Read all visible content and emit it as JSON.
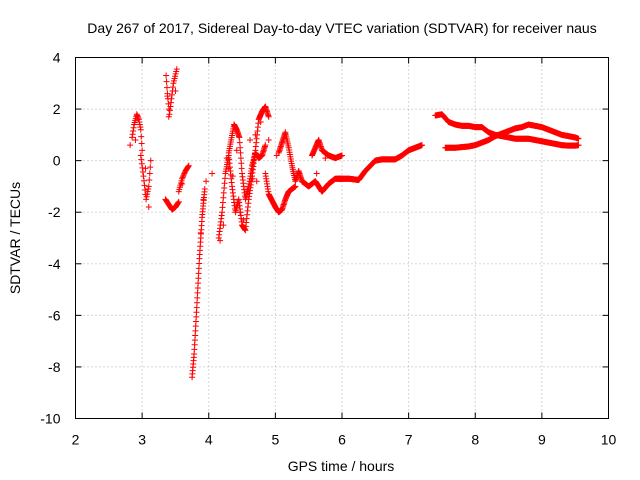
{
  "chart_data": {
    "type": "scatter",
    "title": "Day 267 of 2017, Sidereal Day-to-day VTEC variation (SDTVAR) for receiver naus",
    "xlabel": "GPS time / hours",
    "ylabel": "SDTVAR / TECUs",
    "xlim": [
      2,
      10
    ],
    "ylim": [
      -10,
      4
    ],
    "xticks": [
      2,
      3,
      4,
      5,
      6,
      7,
      8,
      9,
      10
    ],
    "yticks": [
      -10,
      -8,
      -6,
      -4,
      -2,
      0,
      2,
      4
    ],
    "xtick_labels": [
      "2",
      "3",
      "4",
      "5",
      "6",
      "7",
      "8",
      "9",
      "10"
    ],
    "ytick_labels": [
      "-10",
      "-8",
      "-6",
      "-4",
      "-2",
      "0",
      "2",
      "4"
    ],
    "grid": true,
    "marker": "+",
    "color": "#ff0000",
    "segments": [
      {
        "name": "arc-a",
        "x": [
          2.85,
          2.88,
          2.92,
          2.95,
          2.98,
          3.0
        ],
        "y": [
          0.9,
          1.4,
          1.8,
          1.6,
          1.2,
          0.4
        ],
        "step": 0.008
      },
      {
        "name": "arc-b",
        "x": [
          2.98,
          3.02,
          3.06,
          3.1,
          3.13
        ],
        "y": [
          0.2,
          -0.6,
          -1.5,
          -1.0,
          0.0
        ],
        "step": 0.008
      },
      {
        "name": "arc-c",
        "x": [
          3.35,
          3.4,
          3.45,
          3.5,
          3.55
        ],
        "y": [
          -1.5,
          -1.7,
          -1.9,
          -1.8,
          -1.6
        ],
        "step": 0.008
      },
      {
        "name": "arc-d",
        "x": [
          3.36,
          3.38,
          3.41,
          3.44,
          3.47,
          3.52
        ],
        "y": [
          3.3,
          2.6,
          1.8,
          2.4,
          3.0,
          3.55
        ],
        "step": 0.008
      },
      {
        "name": "arc-e",
        "x": [
          3.55,
          3.6,
          3.65,
          3.7
        ],
        "y": [
          -1.2,
          -0.7,
          -0.4,
          -0.2
        ],
        "step": 0.008
      },
      {
        "name": "arc-f",
        "x": [
          3.75,
          3.78,
          3.82,
          3.86,
          3.9,
          3.94
        ],
        "y": [
          -8.4,
          -7.5,
          -5.7,
          -3.8,
          -2.2,
          -1.1
        ],
        "step": 0.004
      },
      {
        "name": "arc-g",
        "x": [
          4.15,
          4.2,
          4.25,
          4.3,
          4.35,
          4.4,
          4.45,
          4.5,
          4.55,
          4.6,
          4.65,
          4.7,
          4.75,
          4.8,
          4.85,
          4.9
        ],
        "y": [
          -3.0,
          -2.0,
          -0.5,
          0.2,
          -1.0,
          -2.0,
          -1.5,
          -2.5,
          -2.7,
          -1.5,
          -0.6,
          0.4,
          1.6,
          1.9,
          2.1,
          1.7
        ],
        "step": 0.006
      },
      {
        "name": "arc-h",
        "x": [
          4.3,
          4.38,
          4.42,
          4.46,
          4.5,
          4.55,
          4.6,
          4.65,
          4.7,
          4.75,
          4.8,
          4.85
        ],
        "y": [
          0.3,
          1.4,
          1.2,
          0.9,
          -0.5,
          -1.5,
          -1.0,
          -0.2,
          0.3,
          0.1,
          0.2,
          0.6
        ],
        "step": 0.006
      },
      {
        "name": "arc-i",
        "x": [
          4.85,
          4.9,
          5.0,
          5.05,
          5.1,
          5.15,
          5.2,
          5.3
        ],
        "y": [
          -0.5,
          -1.3,
          -1.8,
          -2.0,
          -1.9,
          -1.5,
          -1.2,
          -1.0
        ],
        "step": 0.006
      },
      {
        "name": "arc-j",
        "x": [
          5.05,
          5.1,
          5.15,
          5.2,
          5.25,
          5.3,
          5.35,
          5.4,
          5.5,
          5.6,
          5.7,
          5.8,
          5.9,
          6.0
        ],
        "y": [
          0.3,
          0.7,
          1.1,
          0.5,
          -0.2,
          -0.8,
          -0.4,
          -0.8,
          -1.0,
          -0.8,
          -1.2,
          -0.9,
          -0.7,
          -0.7
        ],
        "step": 0.006
      },
      {
        "name": "arc-k",
        "x": [
          5.55,
          5.6,
          5.65,
          5.7,
          5.8,
          5.9,
          6.0
        ],
        "y": [
          0.2,
          0.5,
          0.8,
          0.4,
          0.2,
          0.1,
          0.2
        ],
        "step": 0.006
      },
      {
        "name": "arc-l",
        "x": [
          5.95,
          6.1,
          6.25,
          6.35,
          6.5,
          6.6,
          6.8,
          6.9,
          7.0,
          7.1,
          7.2
        ],
        "y": [
          -0.7,
          -0.7,
          -0.75,
          -0.4,
          0.0,
          0.05,
          0.05,
          0.2,
          0.4,
          0.5,
          0.6
        ],
        "step": 0.006
      },
      {
        "name": "arc-m",
        "x": [
          7.4,
          7.5,
          7.6,
          7.7,
          7.8,
          7.9,
          8.0,
          8.1,
          8.2,
          8.3,
          8.4,
          8.5,
          8.6,
          8.7,
          8.8,
          8.9,
          9.0,
          9.1,
          9.2,
          9.3,
          9.4,
          9.5,
          9.55
        ],
        "y": [
          1.75,
          1.8,
          1.5,
          1.4,
          1.35,
          1.35,
          1.3,
          1.3,
          1.1,
          1.0,
          0.95,
          0.9,
          0.85,
          0.85,
          0.85,
          0.8,
          0.75,
          0.7,
          0.65,
          0.6,
          0.58,
          0.58,
          0.6
        ],
        "step": 0.008
      },
      {
        "name": "arc-n",
        "x": [
          7.55,
          7.7,
          7.9,
          8.0,
          8.1,
          8.2,
          8.3,
          8.4,
          8.5,
          8.6,
          8.7,
          8.8,
          8.9,
          9.0,
          9.1,
          9.2,
          9.3,
          9.4,
          9.5,
          9.55
        ],
        "y": [
          0.5,
          0.5,
          0.55,
          0.6,
          0.7,
          0.8,
          0.95,
          1.05,
          1.15,
          1.25,
          1.3,
          1.4,
          1.35,
          1.3,
          1.2,
          1.1,
          1.0,
          0.95,
          0.9,
          0.85
        ],
        "step": 0.008
      }
    ],
    "scatter": [
      {
        "x": 2.82,
        "y": 0.6
      },
      {
        "x": 2.9,
        "y": 0.8
      },
      {
        "x": 3.1,
        "y": -1.8
      },
      {
        "x": 3.38,
        "y": 2.5
      },
      {
        "x": 3.4,
        "y": 1.7
      },
      {
        "x": 3.5,
        "y": 2.7
      },
      {
        "x": 3.92,
        "y": -1.5
      },
      {
        "x": 3.96,
        "y": -0.8
      },
      {
        "x": 4.17,
        "y": -3.1
      },
      {
        "x": 4.22,
        "y": -2.5
      },
      {
        "x": 4.3,
        "y": -0.3
      },
      {
        "x": 4.42,
        "y": 0.4
      },
      {
        "x": 4.47,
        "y": -2.0
      },
      {
        "x": 4.52,
        "y": -2.3
      },
      {
        "x": 4.58,
        "y": -1.2
      },
      {
        "x": 4.62,
        "y": 0.8
      },
      {
        "x": 4.66,
        "y": -0.7
      },
      {
        "x": 4.7,
        "y": 1.0
      },
      {
        "x": 4.72,
        "y": -0.8
      },
      {
        "x": 4.78,
        "y": 1.5
      },
      {
        "x": 4.9,
        "y": 0.8
      },
      {
        "x": 5.02,
        "y": 0.2
      },
      {
        "x": 5.62,
        "y": -0.5
      },
      {
        "x": 5.75,
        "y": 0.1
      },
      {
        "x": 3.05,
        "y": -0.3
      },
      {
        "x": 3.6,
        "y": -0.9
      },
      {
        "x": 3.88,
        "y": -2.8
      },
      {
        "x": 4.05,
        "y": -0.5
      },
      {
        "x": 4.27,
        "y": 0.1
      },
      {
        "x": 4.36,
        "y": -0.6
      }
    ]
  }
}
